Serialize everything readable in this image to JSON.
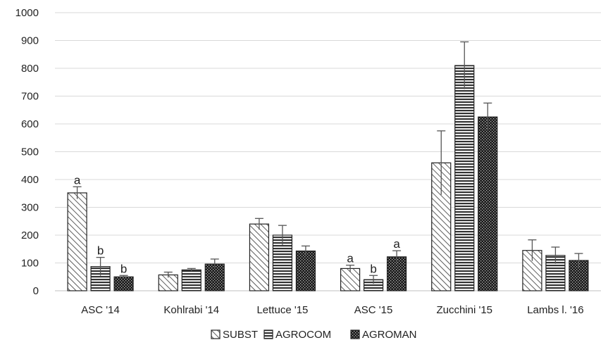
{
  "chart_data": {
    "type": "bar",
    "categories": [
      "ASC '14",
      "Kohlrabi '14",
      "Lettuce '15",
      "ASC '15",
      "Zucchini '15",
      "Lambs l. '16"
    ],
    "ylim": [
      0,
      1000
    ],
    "yticks": [
      0,
      100,
      200,
      300,
      400,
      500,
      600,
      700,
      800,
      900,
      1000
    ],
    "grid": true,
    "legend_position": "bottom",
    "series": [
      {
        "name": "SUBST",
        "pattern": "diagonal-hatch",
        "values": [
          352,
          57,
          240,
          80,
          460,
          145
        ],
        "errors": [
          22,
          10,
          20,
          12,
          115,
          38
        ],
        "sig_labels": [
          "a",
          "",
          "",
          "a",
          "",
          ""
        ]
      },
      {
        "name": "AGROCOM",
        "pattern": "horizontal-lines",
        "values": [
          87,
          75,
          200,
          40,
          810,
          127
        ],
        "errors": [
          33,
          5,
          35,
          15,
          85,
          30
        ],
        "sig_labels": [
          "b",
          "",
          "",
          "b",
          "",
          ""
        ]
      },
      {
        "name": "AGROMAN",
        "pattern": "dark-checker",
        "values": [
          50,
          96,
          143,
          122,
          625,
          109
        ],
        "errors": [
          5,
          18,
          18,
          22,
          50,
          25
        ],
        "sig_labels": [
          "b",
          "",
          "",
          "a",
          "",
          ""
        ]
      }
    ],
    "colors": {
      "grid": "#d9d9d9",
      "bar_outline": "#222222",
      "error_bar": "#555555"
    }
  }
}
